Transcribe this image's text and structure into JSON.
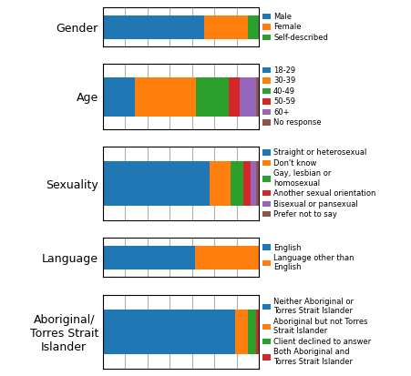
{
  "chart_data": [
    {
      "type": "bar",
      "orientation": "horizontal",
      "stacked": true,
      "categories": [
        "Gender"
      ],
      "series": [
        {
          "name": "Male",
          "values": [
            64.94845360824742
          ]
        },
        {
          "name": "Female",
          "values": [
            27.835051546391753
          ]
        },
        {
          "name": "Self-described",
          "values": [
            7.216494845360825
          ]
        }
      ],
      "xlim": [
        0,
        100
      ],
      "xticks": [
        0,
        14.285714285714286,
        28.571428571428573,
        42.857142857142854,
        57.142857142857146,
        71.42857142857143,
        85.71428571428572,
        100
      ],
      "grid": true,
      "tick_labels": "y",
      "legend": "center left"
    },
    {
      "type": "bar",
      "orientation": "horizontal",
      "stacked": true,
      "categories": [
        "Age"
      ],
      "series": [
        {
          "name": "18-29",
          "values": [
            20.618556701030926
          ]
        },
        {
          "name": "30-39",
          "values": [
            39.175257731958766
          ]
        },
        {
          "name": "40-49",
          "values": [
            20.618556701030926
          ]
        },
        {
          "name": "50-59",
          "values": [
            7.216494845360825
          ]
        },
        {
          "name": "60+",
          "values": [
            10.309278350515463
          ]
        },
        {
          "name": "No response",
          "values": [
            2.0618556701030926
          ]
        }
      ],
      "xlim": [
        0,
        100
      ],
      "xticks": [
        0,
        14.285714285714286,
        28.571428571428573,
        42.857142857142854,
        57.142857142857146,
        71.42857142857143,
        85.71428571428572,
        100
      ],
      "grid": true,
      "tick_labels": "y",
      "legend": "center left"
    },
    {
      "type": "bar",
      "orientation": "horizontal",
      "stacked": true,
      "categories": [
        "Sexuality"
      ],
      "series": [
        {
          "name": "Straight or heterosexual",
          "values": [
            68.36734693877551
          ]
        },
        {
          "name": "Don't know",
          "values": [
            13.26530612244898
          ]
        },
        {
          "name": "Gay, lesbian or\nhomosexual",
          "values": [
            8.16326530612245
          ]
        },
        {
          "name": "Another sexual orientation",
          "values": [
            5.1020408163265305
          ]
        },
        {
          "name": "Bisexual or pansexual",
          "values": [
            3.061224489795918
          ]
        },
        {
          "name": "Prefer not to say",
          "values": [
            2.0408163265306123
          ]
        }
      ],
      "xlim": [
        0,
        100
      ],
      "xticks": [
        0,
        14.285714285714286,
        28.571428571428573,
        42.857142857142854,
        57.142857142857146,
        71.42857142857143,
        85.71428571428572,
        100
      ],
      "grid": true,
      "tick_labels": "y",
      "legend": "center left"
    },
    {
      "type": "bar",
      "orientation": "horizontal",
      "stacked": true,
      "categories": [
        "Language"
      ],
      "series": [
        {
          "name": "English",
          "values": [
            59.183673469387756
          ]
        },
        {
          "name": "Language other than\nEnglish",
          "values": [
            40.816326530612244
          ]
        }
      ],
      "xlim": [
        0,
        100
      ],
      "xticks": [
        0,
        14.285714285714286,
        28.571428571428573,
        42.857142857142854,
        57.142857142857146,
        71.42857142857143,
        85.71428571428572,
        100
      ],
      "grid": true,
      "tick_labels": "y",
      "legend": "center left"
    },
    {
      "type": "bar",
      "orientation": "horizontal",
      "stacked": true,
      "categories": [
        "Aboriginal/\nTorres Strait\nIslander"
      ],
      "series": [
        {
          "name": "Neither Aboriginal or\nTorres Strait Islander",
          "values": [
            84.84848484848484
          ]
        },
        {
          "name": "Aboriginal but not Torres\nStrait Islander",
          "values": [
            8.080808080808081
          ]
        },
        {
          "name": "Client declined to answer",
          "values": [
            5.05050505050505
          ]
        },
        {
          "name": "Both Aboriginal and\nTorres Strait Islander",
          "values": [
            2.0202020202020203
          ]
        }
      ],
      "xlim": [
        0,
        100
      ],
      "xticks": [
        0,
        14.285714285714286,
        28.571428571428573,
        42.857142857142854,
        57.142857142857146,
        71.42857142857143,
        85.71428571428572,
        100
      ],
      "grid": true,
      "tick_labels": "y",
      "legend": "center left"
    }
  ]
}
